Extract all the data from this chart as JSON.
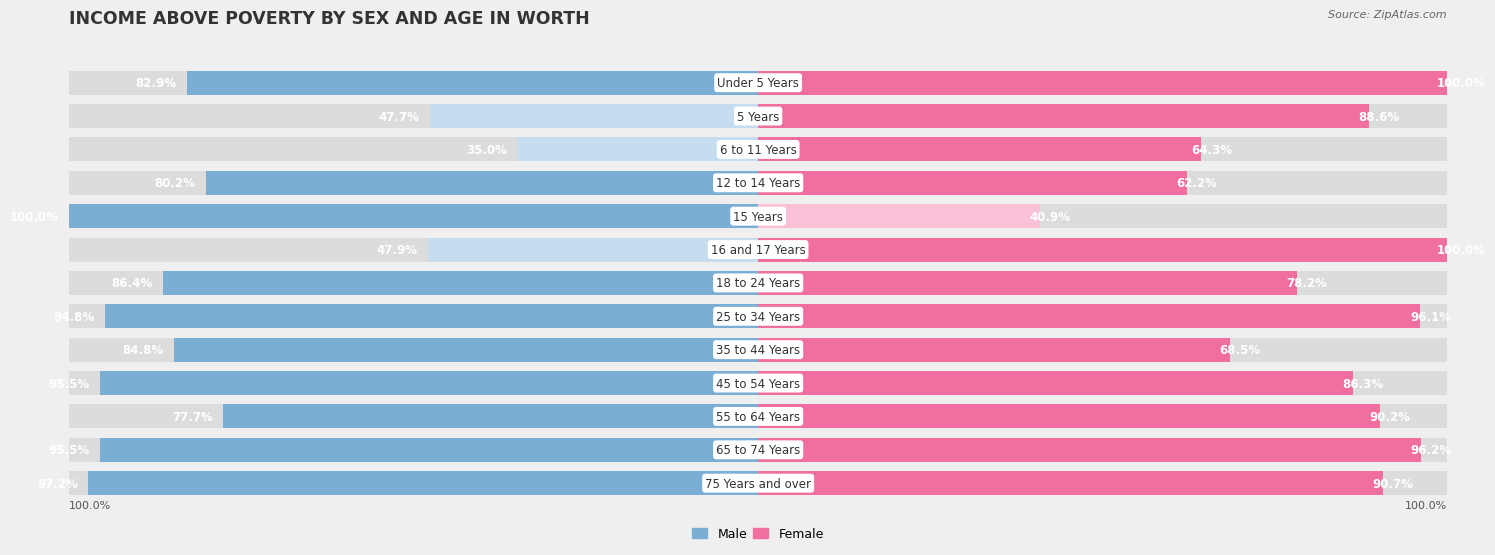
{
  "title": "INCOME ABOVE POVERTY BY SEX AND AGE IN WORTH",
  "source": "Source: ZipAtlas.com",
  "categories": [
    "Under 5 Years",
    "5 Years",
    "6 to 11 Years",
    "12 to 14 Years",
    "15 Years",
    "16 and 17 Years",
    "18 to 24 Years",
    "25 to 34 Years",
    "35 to 44 Years",
    "45 to 54 Years",
    "55 to 64 Years",
    "65 to 74 Years",
    "75 Years and over"
  ],
  "male_values": [
    82.9,
    47.7,
    35.0,
    80.2,
    100.0,
    47.9,
    86.4,
    94.8,
    84.8,
    95.5,
    77.7,
    95.5,
    97.2
  ],
  "female_values": [
    100.0,
    88.6,
    64.3,
    62.2,
    40.9,
    100.0,
    78.2,
    96.1,
    68.5,
    86.3,
    90.2,
    96.2,
    90.7
  ],
  "male_color": "#7aaed4",
  "male_color_light": "#c5ddef",
  "female_color": "#f06fa0",
  "female_color_light": "#f9c0d8",
  "bar_height": 0.72,
  "background_color": "#efefef",
  "bar_bg_color": "#dcdcdc",
  "title_fontsize": 12.5,
  "label_fontsize": 8.5,
  "value_fontsize": 8.5,
  "source_fontsize": 8,
  "axis_label_fontsize": 8
}
